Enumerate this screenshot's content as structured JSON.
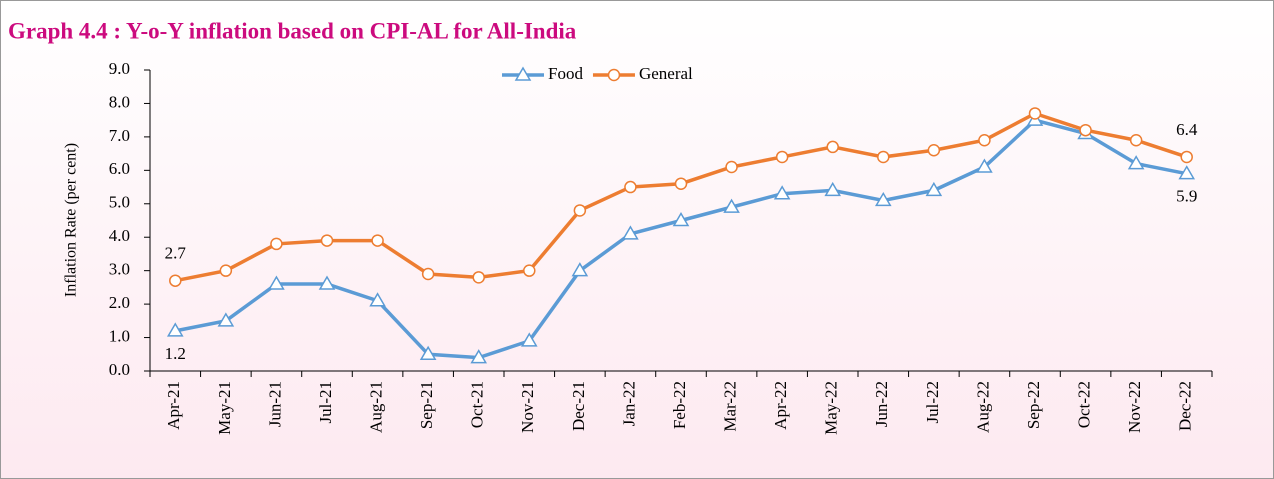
{
  "chart_data": {
    "type": "line",
    "title": "Graph 4.4  : Y-o-Y inflation based on CPI-AL for All-India",
    "y_label": "Inflation Rate (per cent)",
    "categories": [
      "Apr-21",
      "May-21",
      "Jun-21",
      "Jul-21",
      "Aug-21",
      "Sep-21",
      "Oct-21",
      "Nov-21",
      "Dec-21",
      "Jan-22",
      "Feb-22",
      "Mar-22",
      "Apr-22",
      "May-22",
      "Jun-22",
      "Jul-22",
      "Aug-22",
      "Sep-22",
      "Oct-22",
      "Nov-22",
      "Dec-22"
    ],
    "series": [
      {
        "name": "Food",
        "color": "#5b9bd5",
        "marker": "triangle",
        "values": [
          1.2,
          1.5,
          2.6,
          2.6,
          2.1,
          0.5,
          0.4,
          0.9,
          3.0,
          4.1,
          4.5,
          4.9,
          5.3,
          5.4,
          5.1,
          5.4,
          6.1,
          7.5,
          7.1,
          6.2,
          5.9
        ],
        "value_labels": [
          "1.2",
          null,
          null,
          null,
          null,
          null,
          null,
          null,
          null,
          null,
          null,
          null,
          null,
          null,
          null,
          null,
          null,
          null,
          null,
          null,
          "5.9"
        ]
      },
      {
        "name": "General",
        "color": "#ed7d31",
        "marker": "circle",
        "values": [
          2.7,
          3.0,
          3.8,
          3.9,
          3.9,
          2.9,
          2.8,
          3.0,
          4.8,
          5.5,
          5.6,
          6.1,
          6.4,
          6.7,
          6.4,
          6.6,
          6.9,
          7.7,
          7.2,
          6.9,
          6.4
        ],
        "value_labels": [
          "2.7",
          null,
          null,
          null,
          null,
          null,
          null,
          null,
          null,
          null,
          null,
          null,
          null,
          null,
          null,
          null,
          null,
          null,
          null,
          null,
          "6.4"
        ]
      }
    ],
    "ylim": [
      0,
      9
    ],
    "yticks": [
      {
        "value": 0,
        "label": "0.0"
      },
      {
        "value": 1,
        "label": "1.0"
      },
      {
        "value": 2,
        "label": "2.0"
      },
      {
        "value": 3,
        "label": "3.0"
      },
      {
        "value": 4,
        "label": "4.0"
      },
      {
        "value": 5,
        "label": "5.0"
      },
      {
        "value": 6,
        "label": "6.0"
      },
      {
        "value": 7,
        "label": "7.0"
      },
      {
        "value": 8,
        "label": "8.0"
      },
      {
        "value": 9,
        "label": "9.0"
      }
    ],
    "grid": false,
    "legend": "top"
  }
}
